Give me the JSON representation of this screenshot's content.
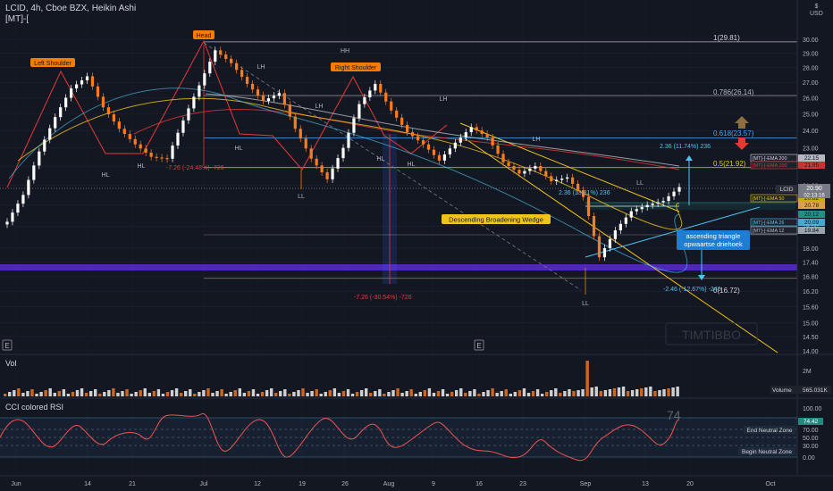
{
  "header": {
    "title": "LCID, 4h, Cboe BZX, Heikin Ashi",
    "indicator": "[MT]-["
  },
  "price_axis": {
    "currency_lines": [
      "$",
      "USD"
    ],
    "ticks": [
      "30.00",
      "29.00",
      "28.00",
      "27.00",
      "26.00",
      "25.00",
      "24.00",
      "23.00",
      "22.00",
      "21.00",
      "20.00",
      "19.00",
      "18.00",
      "17.40",
      "16.80",
      "16.20",
      "15.60",
      "15.00",
      "14.50",
      "14.00"
    ],
    "last_price": "20.90",
    "countdown": "02:13:16",
    "ticker_tag": "LCID",
    "ema_tags": [
      {
        "label": "[MT]-[-EMA 200",
        "value": "22.15",
        "color": "#d1d4dc"
      },
      {
        "label": "[MT]-[-EMA 100",
        "value": "21.85",
        "color": "#e53935"
      },
      {
        "label": "[MT]-[-EMA 50",
        "value": "20.82",
        "color": "#f0c419"
      },
      {
        "label": "",
        "value": "20.78",
        "color": "#ffb74d"
      },
      {
        "label": "",
        "value": "20.12",
        "color": "#26a69a"
      },
      {
        "label": "[MT]-[-EMA 26",
        "value": "20.09",
        "color": "#4fc3f7"
      },
      {
        "label": "[MT]-[-EMA 12",
        "value": "19.84",
        "color": "#b0bec5"
      }
    ]
  },
  "x_axis": {
    "labels": [
      "Jun",
      "14",
      "21",
      "Jul",
      "12",
      "19",
      "26",
      "Aug",
      "9",
      "16",
      "23",
      "Sep",
      "13",
      "20",
      "Oct"
    ]
  },
  "fib_levels": [
    {
      "label": "1(29.81)",
      "price": 29.81
    },
    {
      "label": "0.786(26.14)",
      "price": 26.14
    },
    {
      "label": "0.618(23.57)",
      "price": 23.57
    },
    {
      "label": "0.5(21.92)",
      "price": 21.92
    },
    {
      "label": "0(16.72)",
      "price": 16.72
    }
  ],
  "pattern_labels": {
    "head": "Head",
    "left_shoulder": "Left Shoulder",
    "right_shoulder": "Right Shoulder",
    "wedge": "Descending Broadening Wedge",
    "triangle_line1": "ascending triangle",
    "triangle_line2": "opwaartse driehoek"
  },
  "swing_labels": [
    "HH",
    "LH",
    "LH",
    "LH",
    "LH",
    "HL",
    "HL",
    "HL",
    "HL",
    "HL",
    "LL",
    "LL",
    "LL"
  ],
  "measurements": [
    {
      "label": "-7.26 (-24.48%) -726"
    },
    {
      "label": "-7.26 (-30.54%) -726"
    },
    {
      "label": "2.36 (11.74%) 236"
    },
    {
      "label": "2.36 (13.31%) 236"
    },
    {
      "label": "-2.46 (-12.67%) -246"
    }
  ],
  "watermark": "TIMTIBBO",
  "e_markers": [
    "E",
    "E"
  ],
  "volume_pane": {
    "title": "Vol",
    "scale_label": "2M",
    "volume_tag": "Volume",
    "volume_value": "565.031K"
  },
  "rsi_pane": {
    "title": "CCI colored RSI",
    "big_value": "74",
    "ticks": [
      "100.00",
      "70.00",
      "50.00",
      "30.00",
      "0.00"
    ],
    "end_zone_label": "End Neutral Zone",
    "begin_zone_label": "Begin Neutral Zone",
    "rsi_tag": "74.42"
  },
  "colors": {
    "background": "#131722",
    "up_candle": "#ffffff",
    "down_candle": "#ff7b1c",
    "pattern_line": "#e53935",
    "wedge_line": "#f0c419",
    "triangle_line": "#4fc3f7",
    "purple_band": "#5b2bd6",
    "label_orange": "#f57c00"
  },
  "chart_data": {
    "type": "line",
    "title": "LCID, 4h, Cboe BZX, Heikin Ashi",
    "xlabel": "",
    "ylabel": "",
    "ylim": [
      14.0,
      30.5
    ],
    "y_scale": "log",
    "x": [
      "Jun",
      "Jun",
      "Jun",
      "Jun",
      "Jun",
      "14",
      "14",
      "14",
      "21",
      "21",
      "21",
      "21",
      "Jul",
      "Jul",
      "Jul",
      "Jul",
      "12",
      "12",
      "12",
      "19",
      "19",
      "19",
      "26",
      "26",
      "26",
      "Aug",
      "Aug",
      "Aug",
      "9",
      "9",
      "9",
      "16",
      "16",
      "16",
      "23",
      "23",
      "23",
      "Sep",
      "Sep",
      "Sep",
      "13",
      "13",
      "13"
    ],
    "series": [
      {
        "name": "",
        "values": [
          19.2,
          20.5,
          22.8,
          24.8,
          26.6,
          27.4,
          25.4,
          24.1,
          23.2,
          22.5,
          22.4,
          24.6,
          26.8,
          29.2,
          28.3,
          26.9,
          25.8,
          26.3,
          24.1,
          22.4,
          21.3,
          23.0,
          25.6,
          26.9,
          25.2,
          23.9,
          23.2,
          22.3,
          23.3,
          24.2,
          23.6,
          22.2,
          21.6,
          22.0,
          21.2,
          21.4,
          20.4,
          17.6,
          18.8,
          19.7,
          20.0,
          20.2,
          20.9
        ]
      }
    ]
  }
}
